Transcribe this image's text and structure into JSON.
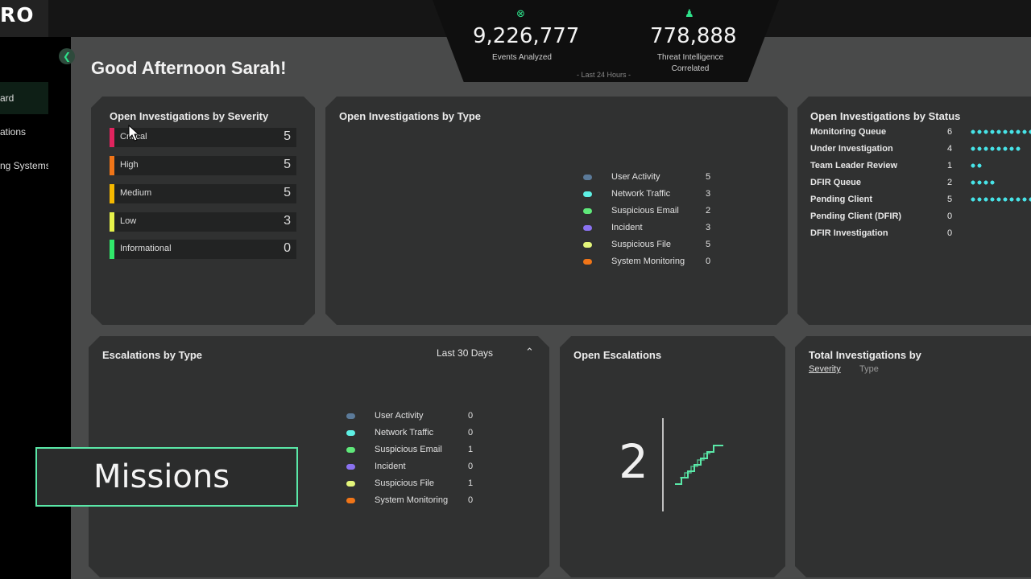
{
  "app": {
    "logo": "RO"
  },
  "sidebar": {
    "items": [
      {
        "label": "ard",
        "active": true
      },
      {
        "label": "ations",
        "active": false
      },
      {
        "label": "ng Systems",
        "active": false
      }
    ]
  },
  "header": {
    "greeting": "Good Afternoon Sarah!",
    "stats": [
      {
        "icon": "target-icon",
        "value": "9,226,777",
        "label": "Events Analyzed"
      },
      {
        "icon": "people-icon",
        "value": "778,888",
        "label": "Threat Intelligence Correlated"
      }
    ],
    "period": "- Last 24 Hours -"
  },
  "severity_panel": {
    "title": "Open Investigations by Severity",
    "rows": [
      {
        "label": "Critical",
        "count": "5",
        "color": "#e0245e"
      },
      {
        "label": "High",
        "count": "5",
        "color": "#f07518"
      },
      {
        "label": "Medium",
        "count": "5",
        "color": "#f5b800"
      },
      {
        "label": "Low",
        "count": "3",
        "color": "#e6f24a"
      },
      {
        "label": "Informational",
        "count": "0",
        "color": "#31e86b"
      }
    ]
  },
  "type_panel": {
    "title": "Open Investigations by Type",
    "legend": [
      {
        "label": "User Activity",
        "value": "5",
        "color": "#5b7a99"
      },
      {
        "label": "Network Traffic",
        "value": "3",
        "color": "#5ef0e4"
      },
      {
        "label": "Suspicious Email",
        "value": "2",
        "color": "#5fe87a"
      },
      {
        "label": "Incident",
        "value": "3",
        "color": "#8a72f0"
      },
      {
        "label": "Suspicious File",
        "value": "5",
        "color": "#e3f57a"
      },
      {
        "label": "System Monitoring",
        "value": "0",
        "color": "#f07518"
      }
    ]
  },
  "status_panel": {
    "title": "Open Investigations by Status",
    "rows": [
      {
        "label": "Monitoring Queue",
        "value": "6"
      },
      {
        "label": "Under Investigation",
        "value": "4"
      },
      {
        "label": "Team Leader Review",
        "value": "1"
      },
      {
        "label": "DFIR Queue",
        "value": "2"
      },
      {
        "label": "Pending Client",
        "value": "5"
      },
      {
        "label": "Pending Client (DFIR)",
        "value": "0"
      },
      {
        "label": "DFIR Investigation",
        "value": "0"
      }
    ]
  },
  "escalations_panel": {
    "title": "Escalations by Type",
    "period": "Last 30 Days",
    "legend": [
      {
        "label": "User Activity",
        "value": "0",
        "color": "#5b7a99"
      },
      {
        "label": "Network Traffic",
        "value": "0",
        "color": "#5ef0e4"
      },
      {
        "label": "Suspicious Email",
        "value": "1",
        "color": "#5fe87a"
      },
      {
        "label": "Incident",
        "value": "0",
        "color": "#8a72f0"
      },
      {
        "label": "Suspicious File",
        "value": "1",
        "color": "#e3f57a"
      },
      {
        "label": "System Monitoring",
        "value": "0",
        "color": "#f07518"
      }
    ]
  },
  "open_escalations": {
    "title": "Open Escalations",
    "count": "2",
    "icon": "stairs-icon"
  },
  "total_panel": {
    "title": "Total Investigations by",
    "tabs": [
      "Severity",
      "Type"
    ],
    "active_tab": "Severity"
  },
  "overlay": {
    "label": "Missions"
  },
  "chart_data": [
    {
      "type": "pie",
      "title": "Open Investigations by Type",
      "categories": [
        "User Activity",
        "Network Traffic",
        "Suspicious Email",
        "Incident",
        "Suspicious File",
        "System Monitoring"
      ],
      "values": [
        5,
        3,
        2,
        3,
        5,
        0
      ]
    },
    {
      "type": "pie",
      "title": "Escalations by Type",
      "categories": [
        "User Activity",
        "Network Traffic",
        "Suspicious Email",
        "Incident",
        "Suspicious File",
        "System Monitoring"
      ],
      "values": [
        0,
        0,
        1,
        0,
        1,
        0
      ]
    },
    {
      "type": "pie",
      "title": "Total Investigations by",
      "categories": [
        "Critical",
        "High",
        "Medium",
        "Low",
        "Informational"
      ],
      "values": [
        5,
        5,
        5,
        3,
        0
      ]
    },
    {
      "type": "bar",
      "title": "Open Investigations by Status",
      "categories": [
        "Monitoring Queue",
        "Under Investigation",
        "Team Leader Review",
        "DFIR Queue",
        "Pending Client",
        "Pending Client (DFIR)",
        "DFIR Investigation"
      ],
      "values": [
        6,
        4,
        1,
        2,
        5,
        0,
        0
      ]
    }
  ]
}
